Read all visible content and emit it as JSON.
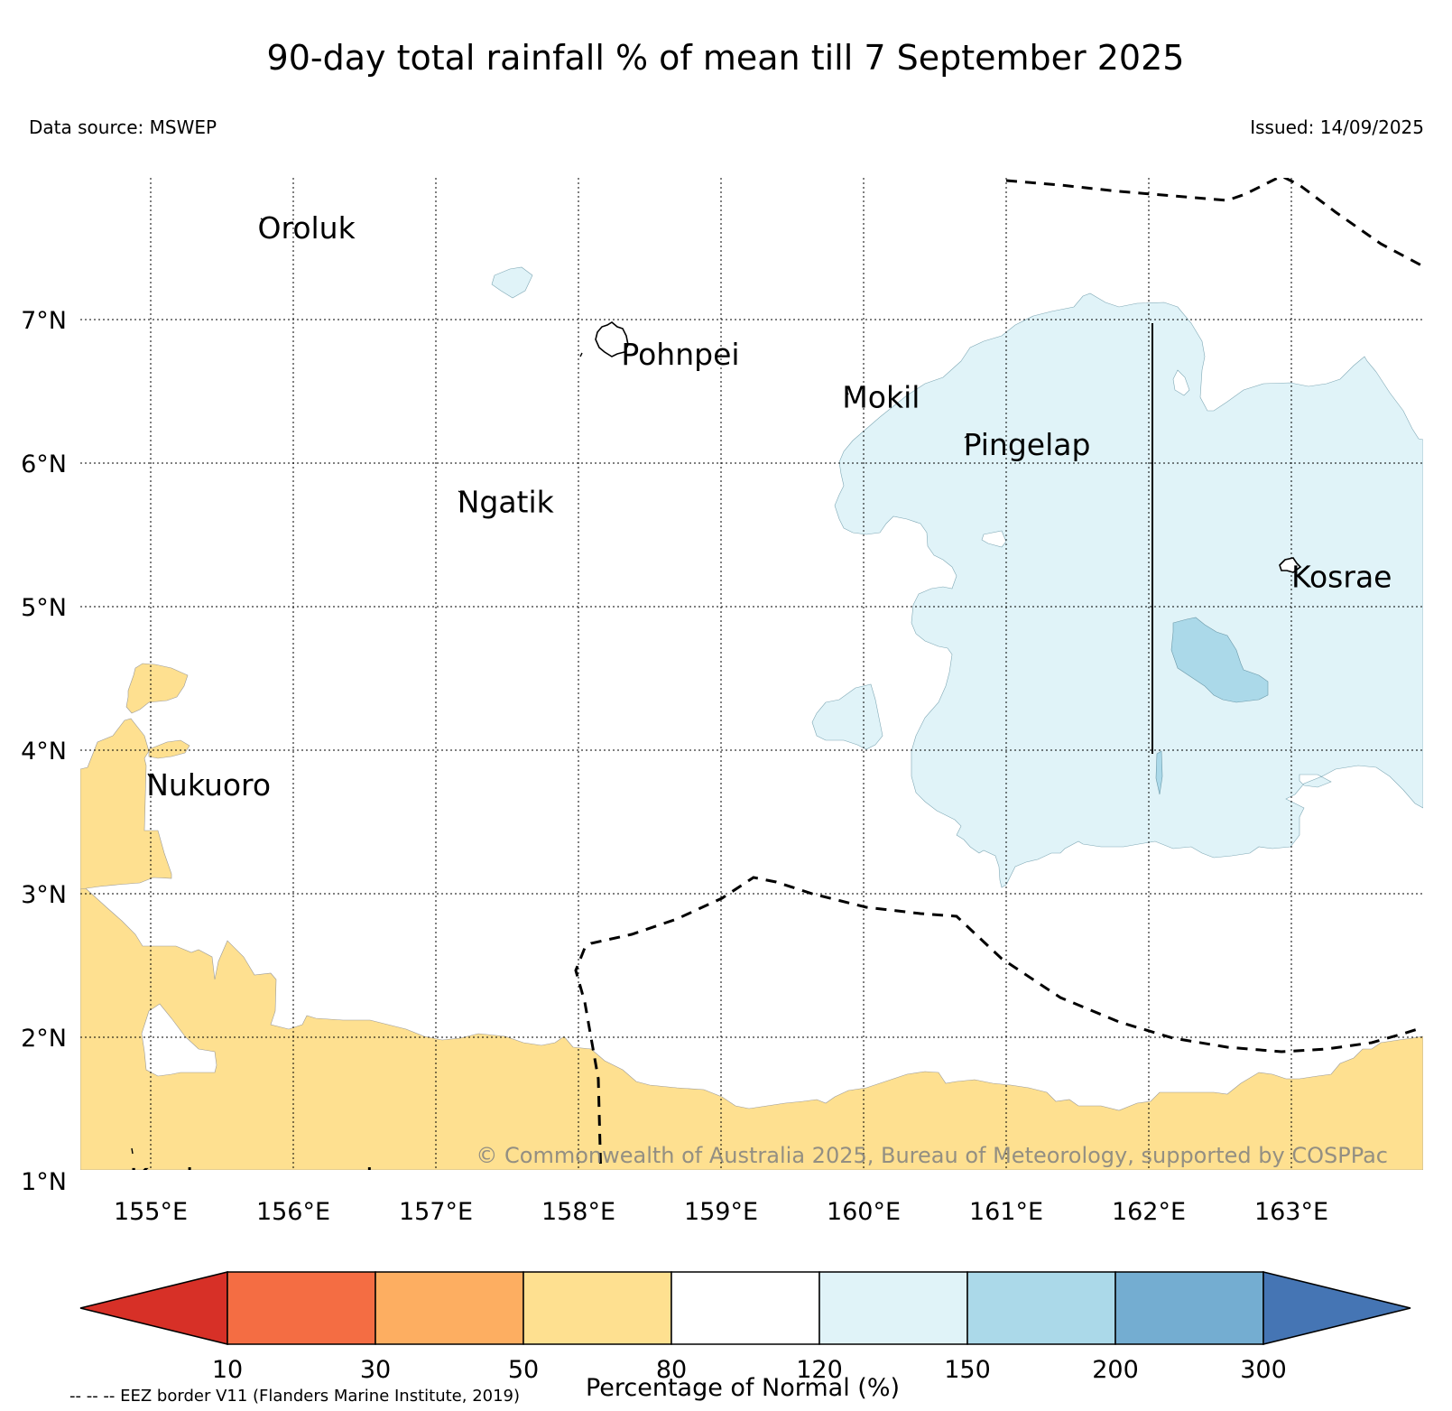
{
  "title": "90-day total rainfall % of mean till 7 September 2025",
  "data_source": "Data source: MSWEP",
  "issued": "Issued: 14/09/2025",
  "copyright": "© Commonwealth of Australia 2025, Bureau of Meteorology, supported by COSPPac",
  "footnote": "-- -- -- EEZ border V11 (Flanders Marine Institute, 2019)",
  "map": {
    "lon_range": [
      154.5,
      164.0
    ],
    "lat_range": [
      1.0,
      8.0
    ],
    "lon_ticks": [
      {
        "value": 155,
        "label": "155°E"
      },
      {
        "value": 156,
        "label": "156°E"
      },
      {
        "value": 157,
        "label": "157°E"
      },
      {
        "value": 158,
        "label": "158°E"
      },
      {
        "value": 159,
        "label": "159°E"
      },
      {
        "value": 160,
        "label": "160°E"
      },
      {
        "value": 161,
        "label": "161°E"
      },
      {
        "value": 162,
        "label": "162°E"
      },
      {
        "value": 163,
        "label": "163°E"
      }
    ],
    "lat_ticks": [
      {
        "value": 7,
        "label": "7°N"
      },
      {
        "value": 6,
        "label": "6°N"
      },
      {
        "value": 5,
        "label": "5°N"
      },
      {
        "value": 4,
        "label": "4°N"
      },
      {
        "value": 3,
        "label": "3°N"
      },
      {
        "value": 2,
        "label": "2°N"
      },
      {
        "value": 1,
        "label": "1°N"
      }
    ],
    "gridlines": true,
    "places": [
      {
        "name": "Oroluk",
        "lon": 155.75,
        "lat": 7.73
      },
      {
        "name": "Pohnpei",
        "lon": 158.3,
        "lat": 6.85
      },
      {
        "name": "Mokil",
        "lon": 159.85,
        "lat": 6.55
      },
      {
        "name": "Pingelap",
        "lon": 160.7,
        "lat": 6.22
      },
      {
        "name": "Ngatik",
        "lon": 157.15,
        "lat": 5.82
      },
      {
        "name": "Kosrae",
        "lon": 163.0,
        "lat": 5.3
      },
      {
        "name": "Nukuoro",
        "lon": 154.97,
        "lat": 3.85
      },
      {
        "name": "Kapingamarangi",
        "lon": 154.85,
        "lat": 1.1
      }
    ]
  },
  "colorbar": {
    "title": "Percentage of Normal (%)",
    "tick_labels": [
      "10",
      "30",
      "50",
      "80",
      "120",
      "150",
      "200",
      "300"
    ],
    "colors": {
      "below_10": "#d73027",
      "10_30": "#f46d43",
      "30_50": "#fdae61",
      "50_80": "#fee090",
      "80_120": "#ffffff",
      "120_150": "#e0f3f8",
      "150_200": "#abd9e9",
      "200_300": "#74add1",
      "above_300": "#4575b4"
    }
  }
}
